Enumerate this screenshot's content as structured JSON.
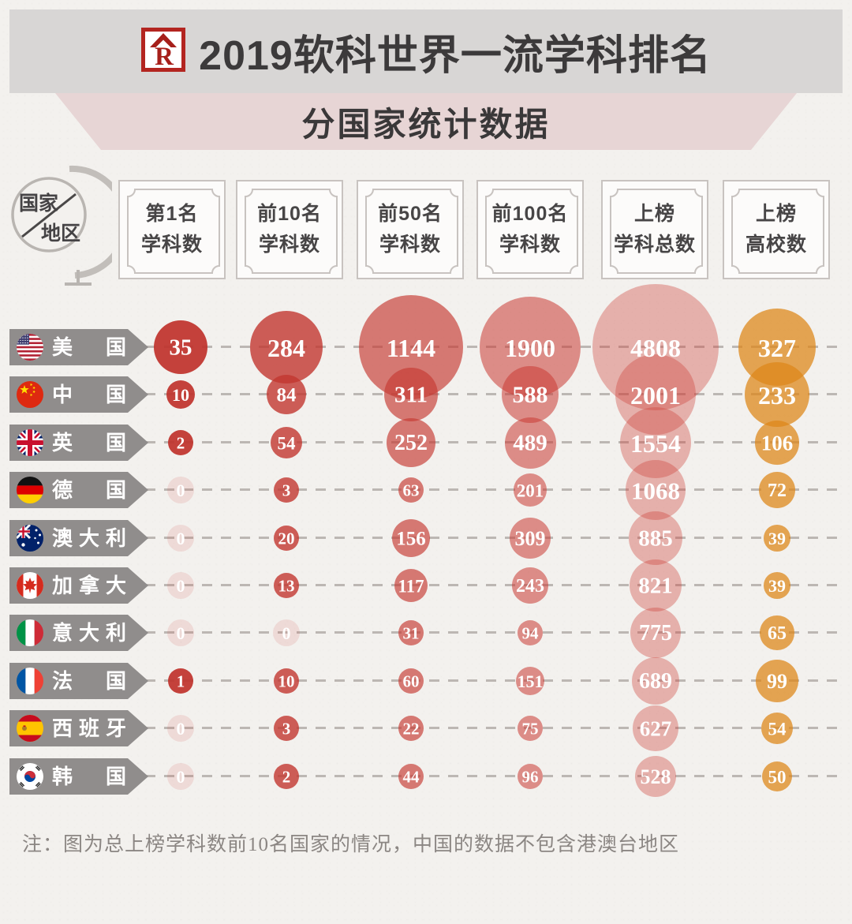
{
  "header": {
    "title": "2019软科世界一流学科排名",
    "subtitle": "分国家统计数据",
    "logo_icon": "shanghairanking-r-logo"
  },
  "corner_label": {
    "top": "国家",
    "bottom": "地区"
  },
  "note": "注：图为总上榜学科数前10名国家的情况，中国的数据不包含港澳台地区",
  "colors": {
    "background": "#f3f1ee",
    "top_banner": "#d8d6d5",
    "subtitle_ribbon": "#e7d5d5",
    "country_banner": "#908d8c",
    "title_text": "#3c3a3b",
    "note_text": "#8b8683",
    "dash": "#bcb7b3",
    "logo_red": "#b32520"
  },
  "chart_data": {
    "type": "bubble",
    "title": "2019软科世界一流学科排名 分国家统计数据",
    "legend_position": "top",
    "grid": "dashed-row-lines",
    "columns": [
      {
        "line1": "第1名",
        "line2": "学科数",
        "color": "rgba(191,52,45,0.93)"
      },
      {
        "line1": "前10名",
        "line2": "学科数",
        "color": "rgba(194,55,47,0.80)"
      },
      {
        "line1": "前50名",
        "line2": "学科数",
        "color": "rgba(197,57,50,0.66)"
      },
      {
        "line1": "前100名",
        "line2": "学科数",
        "color": "rgba(201,60,53,0.56)"
      },
      {
        "line1": "上榜",
        "line2": "学科总数",
        "color": "rgba(206,66,58,0.37)"
      },
      {
        "line1": "上榜",
        "line2": "高校数",
        "color": "rgba(221,135,25,0.74)"
      }
    ],
    "zero_bubble_color": "rgba(206,66,58,0.13)",
    "radius_scale": [
      5.8,
      2.75,
      1.95,
      1.47,
      1.15,
      2.7
    ],
    "rows": [
      {
        "country": "美国",
        "flag": "us",
        "values": [
          35,
          284,
          1144,
          1900,
          4808,
          327
        ]
      },
      {
        "country": "中国",
        "flag": "cn",
        "values": [
          10,
          84,
          311,
          588,
          2001,
          233
        ]
      },
      {
        "country": "英国",
        "flag": "gb",
        "values": [
          2,
          54,
          252,
          489,
          1554,
          106
        ]
      },
      {
        "country": "德国",
        "flag": "de",
        "values": [
          0,
          3,
          63,
          201,
          1068,
          72
        ]
      },
      {
        "country": "澳大利亚",
        "flag": "au",
        "values": [
          0,
          20,
          156,
          309,
          885,
          39
        ]
      },
      {
        "country": "加拿大",
        "flag": "ca",
        "values": [
          0,
          13,
          117,
          243,
          821,
          39
        ]
      },
      {
        "country": "意大利",
        "flag": "it",
        "values": [
          0,
          0,
          31,
          94,
          775,
          65
        ]
      },
      {
        "country": "法国",
        "flag": "fr",
        "values": [
          1,
          10,
          60,
          151,
          689,
          99
        ]
      },
      {
        "country": "西班牙",
        "flag": "es",
        "values": [
          0,
          3,
          22,
          75,
          627,
          54
        ]
      },
      {
        "country": "韩国",
        "flag": "kr",
        "values": [
          0,
          2,
          44,
          96,
          528,
          50
        ]
      }
    ]
  }
}
